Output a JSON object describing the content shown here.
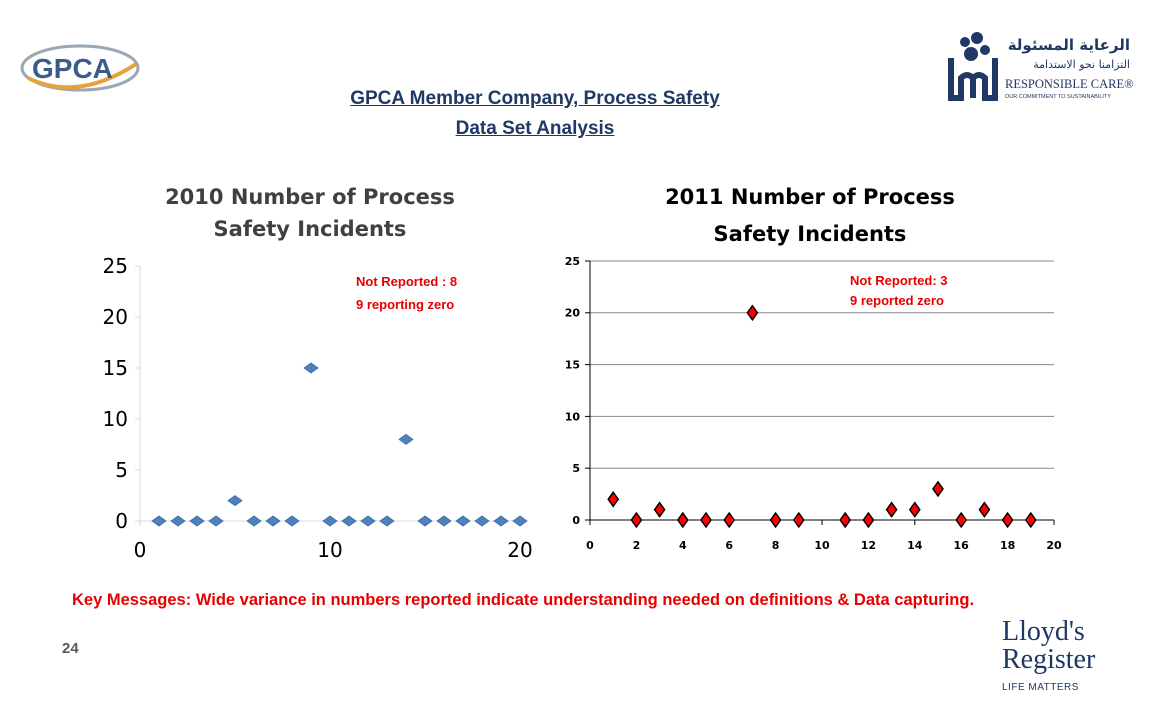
{
  "slide": {
    "title_line1": "GPCA Member Company, Process Safety",
    "title_line2": "Data Set Analysis",
    "key_messages": "Key Messages: Wide variance in numbers reported indicate understanding needed on definitions & Data capturing.",
    "page_number": "24"
  },
  "logos": {
    "gpca": "GPCA",
    "responsible_care_arabic_1": "الرعاية المسئولة",
    "responsible_care_arabic_2": "التزامنا نحو الاستدامة",
    "responsible_care": "RESPONSIBLE CARE®",
    "responsible_care_tagline": "OUR COMMITMENT TO SUSTAINABILITY",
    "lloyds_1": "Lloyd's",
    "lloyds_2": "Register",
    "lloyds_tagline": "LIFE MATTERS"
  },
  "colors": {
    "title": "#1f3864",
    "annotation": "#e60000",
    "series_2010": "#4f81bd",
    "series_2011": "#ff0000"
  },
  "chart_data": [
    {
      "type": "scatter",
      "title_line1": "2010  Number of Process",
      "title_line2": "Safety Incidents",
      "annotation_line1": "Not Reported : 8",
      "annotation_line2": "9  reporting  zero",
      "xlim": [
        0,
        20
      ],
      "ylim": [
        0,
        25
      ],
      "xticks": [
        0,
        10,
        20
      ],
      "yticks": [
        0,
        5,
        10,
        15,
        20,
        25
      ],
      "grid": false,
      "marker": "diamond",
      "points": [
        {
          "x": 1,
          "y": 0
        },
        {
          "x": 2,
          "y": 0
        },
        {
          "x": 3,
          "y": 0
        },
        {
          "x": 4,
          "y": 0
        },
        {
          "x": 5,
          "y": 2
        },
        {
          "x": 6,
          "y": 0
        },
        {
          "x": 7,
          "y": 0
        },
        {
          "x": 8,
          "y": 0
        },
        {
          "x": 9,
          "y": 15
        },
        {
          "x": 10,
          "y": 0
        },
        {
          "x": 11,
          "y": 0
        },
        {
          "x": 12,
          "y": 0
        },
        {
          "x": 13,
          "y": 0
        },
        {
          "x": 14,
          "y": 8
        },
        {
          "x": 15,
          "y": 0
        },
        {
          "x": 16,
          "y": 0
        },
        {
          "x": 17,
          "y": 0
        },
        {
          "x": 18,
          "y": 0
        },
        {
          "x": 19,
          "y": 0
        },
        {
          "x": 20,
          "y": 0
        }
      ]
    },
    {
      "type": "scatter",
      "title_line1": "2011 Number of Process",
      "title_line2": "Safety Incidents",
      "annotation_line1": "Not Reported: 3",
      "annotation_line2": "9 reported zero",
      "xlim": [
        0,
        20
      ],
      "ylim": [
        0,
        25
      ],
      "xticks": [
        0,
        2,
        4,
        6,
        8,
        10,
        12,
        14,
        16,
        18,
        20
      ],
      "yticks": [
        0,
        5,
        10,
        15,
        20,
        25
      ],
      "grid": true,
      "marker": "diamond",
      "points": [
        {
          "x": 1,
          "y": 2
        },
        {
          "x": 2,
          "y": 0
        },
        {
          "x": 3,
          "y": 1
        },
        {
          "x": 4,
          "y": 0
        },
        {
          "x": 5,
          "y": 0
        },
        {
          "x": 6,
          "y": 0
        },
        {
          "x": 7,
          "y": 20
        },
        {
          "x": 8,
          "y": 0
        },
        {
          "x": 9,
          "y": 0
        },
        {
          "x": 11,
          "y": 0
        },
        {
          "x": 12,
          "y": 0
        },
        {
          "x": 13,
          "y": 1
        },
        {
          "x": 14,
          "y": 1
        },
        {
          "x": 15,
          "y": 3
        },
        {
          "x": 16,
          "y": 0
        },
        {
          "x": 17,
          "y": 1
        },
        {
          "x": 18,
          "y": 0
        },
        {
          "x": 19,
          "y": 0
        }
      ]
    }
  ]
}
